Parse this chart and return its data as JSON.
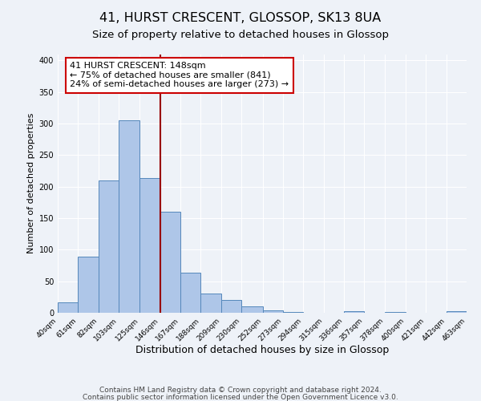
{
  "title": "41, HURST CRESCENT, GLOSSOP, SK13 8UA",
  "subtitle": "Size of property relative to detached houses in Glossop",
  "xlabel": "Distribution of detached houses by size in Glossop",
  "ylabel": "Number of detached properties",
  "bar_edges": [
    40,
    61,
    82,
    103,
    125,
    146,
    167,
    188,
    209,
    230,
    252,
    273,
    294,
    315,
    336,
    357,
    378,
    400,
    421,
    442,
    463
  ],
  "bar_heights": [
    17,
    89,
    210,
    305,
    213,
    160,
    63,
    30,
    20,
    10,
    4,
    1,
    0,
    0,
    3,
    0,
    1,
    0,
    0,
    2
  ],
  "bar_color": "#aec6e8",
  "bar_edge_color": "#5588bb",
  "vline_x": 146,
  "vline_color": "#990000",
  "annotation_line1": "41 HURST CRESCENT: 148sqm",
  "annotation_line2": "← 75% of detached houses are smaller (841)",
  "annotation_line3": "24% of semi-detached houses are larger (273) →",
  "annotation_box_color": "#ffffff",
  "annotation_box_edge": "#cc0000",
  "ylim": [
    0,
    410
  ],
  "tick_labels": [
    "40sqm",
    "61sqm",
    "82sqm",
    "103sqm",
    "125sqm",
    "146sqm",
    "167sqm",
    "188sqm",
    "209sqm",
    "230sqm",
    "252sqm",
    "273sqm",
    "294sqm",
    "315sqm",
    "336sqm",
    "357sqm",
    "378sqm",
    "400sqm",
    "421sqm",
    "442sqm",
    "463sqm"
  ],
  "footer1": "Contains HM Land Registry data © Crown copyright and database right 2024.",
  "footer2": "Contains public sector information licensed under the Open Government Licence v3.0.",
  "background_color": "#eef2f8",
  "grid_color": "#ffffff",
  "title_fontsize": 11.5,
  "subtitle_fontsize": 9.5,
  "xlabel_fontsize": 9,
  "ylabel_fontsize": 8,
  "tick_fontsize": 6.5,
  "annotation_fontsize": 8,
  "footer_fontsize": 6.5
}
